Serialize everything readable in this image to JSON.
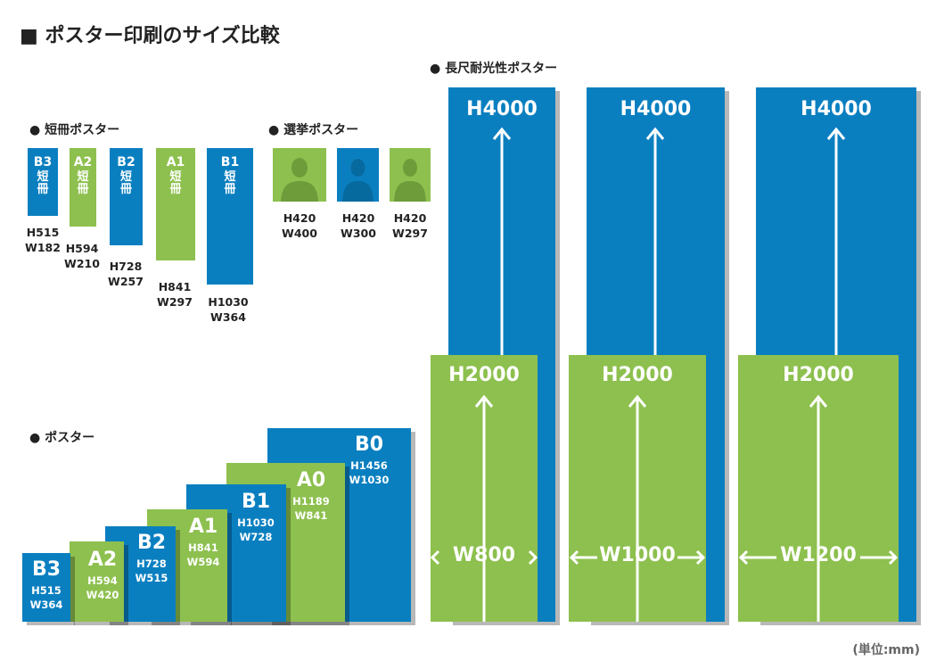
{
  "page_title": "■ ポスター印刷のサイズ比較",
  "sections": {
    "tanzaku": "● 短冊ポスター",
    "senkyo": "● 選挙ポスター",
    "poster": "● ポスター",
    "longlife": "● 長尺耐光性ポスター"
  },
  "tanzaku_items": [
    {
      "name": "B3",
      "sub": "短冊",
      "label": "H515\nW182",
      "color": "#0a7fc0"
    },
    {
      "name": "A2",
      "sub": "短冊",
      "label": "H594\nW210",
      "color": "#8dc04e"
    },
    {
      "name": "B2",
      "sub": "短冊",
      "label": "H728\nW257",
      "color": "#0a7fc0"
    },
    {
      "name": "A1",
      "sub": "短冊",
      "label": "H841\nW297",
      "color": "#8dc04e"
    },
    {
      "name": "B1",
      "sub": "短冊",
      "label": "H1030\nW364",
      "color": "#0a7fc0"
    }
  ],
  "senkyo_items": [
    {
      "label": "H420\nW400",
      "color": "#8dc04e"
    },
    {
      "label": "H420\nW300",
      "color": "#0a7fc0"
    },
    {
      "label": "H420\nW297",
      "color": "#8dc04e"
    }
  ],
  "poster_items": [
    {
      "name": "B3",
      "dims": "H515\nW364",
      "color": "#0a7fc0"
    },
    {
      "name": "A2",
      "dims": "H594\nW420",
      "color": "#8dc04e"
    },
    {
      "name": "B2",
      "dims": "H728\nW515",
      "color": "#0a7fc0"
    },
    {
      "name": "A1",
      "dims": "H841\nW594",
      "color": "#8dc04e"
    },
    {
      "name": "B1",
      "dims": "H1030\nW728",
      "color": "#0a7fc0"
    },
    {
      "name": "A0",
      "dims": "H1189\nW841",
      "color": "#8dc04e"
    },
    {
      "name": "B0",
      "dims": "H1456\nW1030",
      "color": "#0a7fc0"
    }
  ],
  "longlife_items": [
    {
      "h_max": "H4000",
      "h_min": "H2000",
      "width": "W800"
    },
    {
      "h_max": "H4000",
      "h_min": "H2000",
      "width": "W1000"
    },
    {
      "h_max": "H4000",
      "h_min": "H2000",
      "width": "W1200"
    }
  ],
  "unit_note": "(単位:mm)",
  "colors": {
    "blue": "#0a7fc0",
    "green": "#8dc04e",
    "text": "#222222"
  }
}
